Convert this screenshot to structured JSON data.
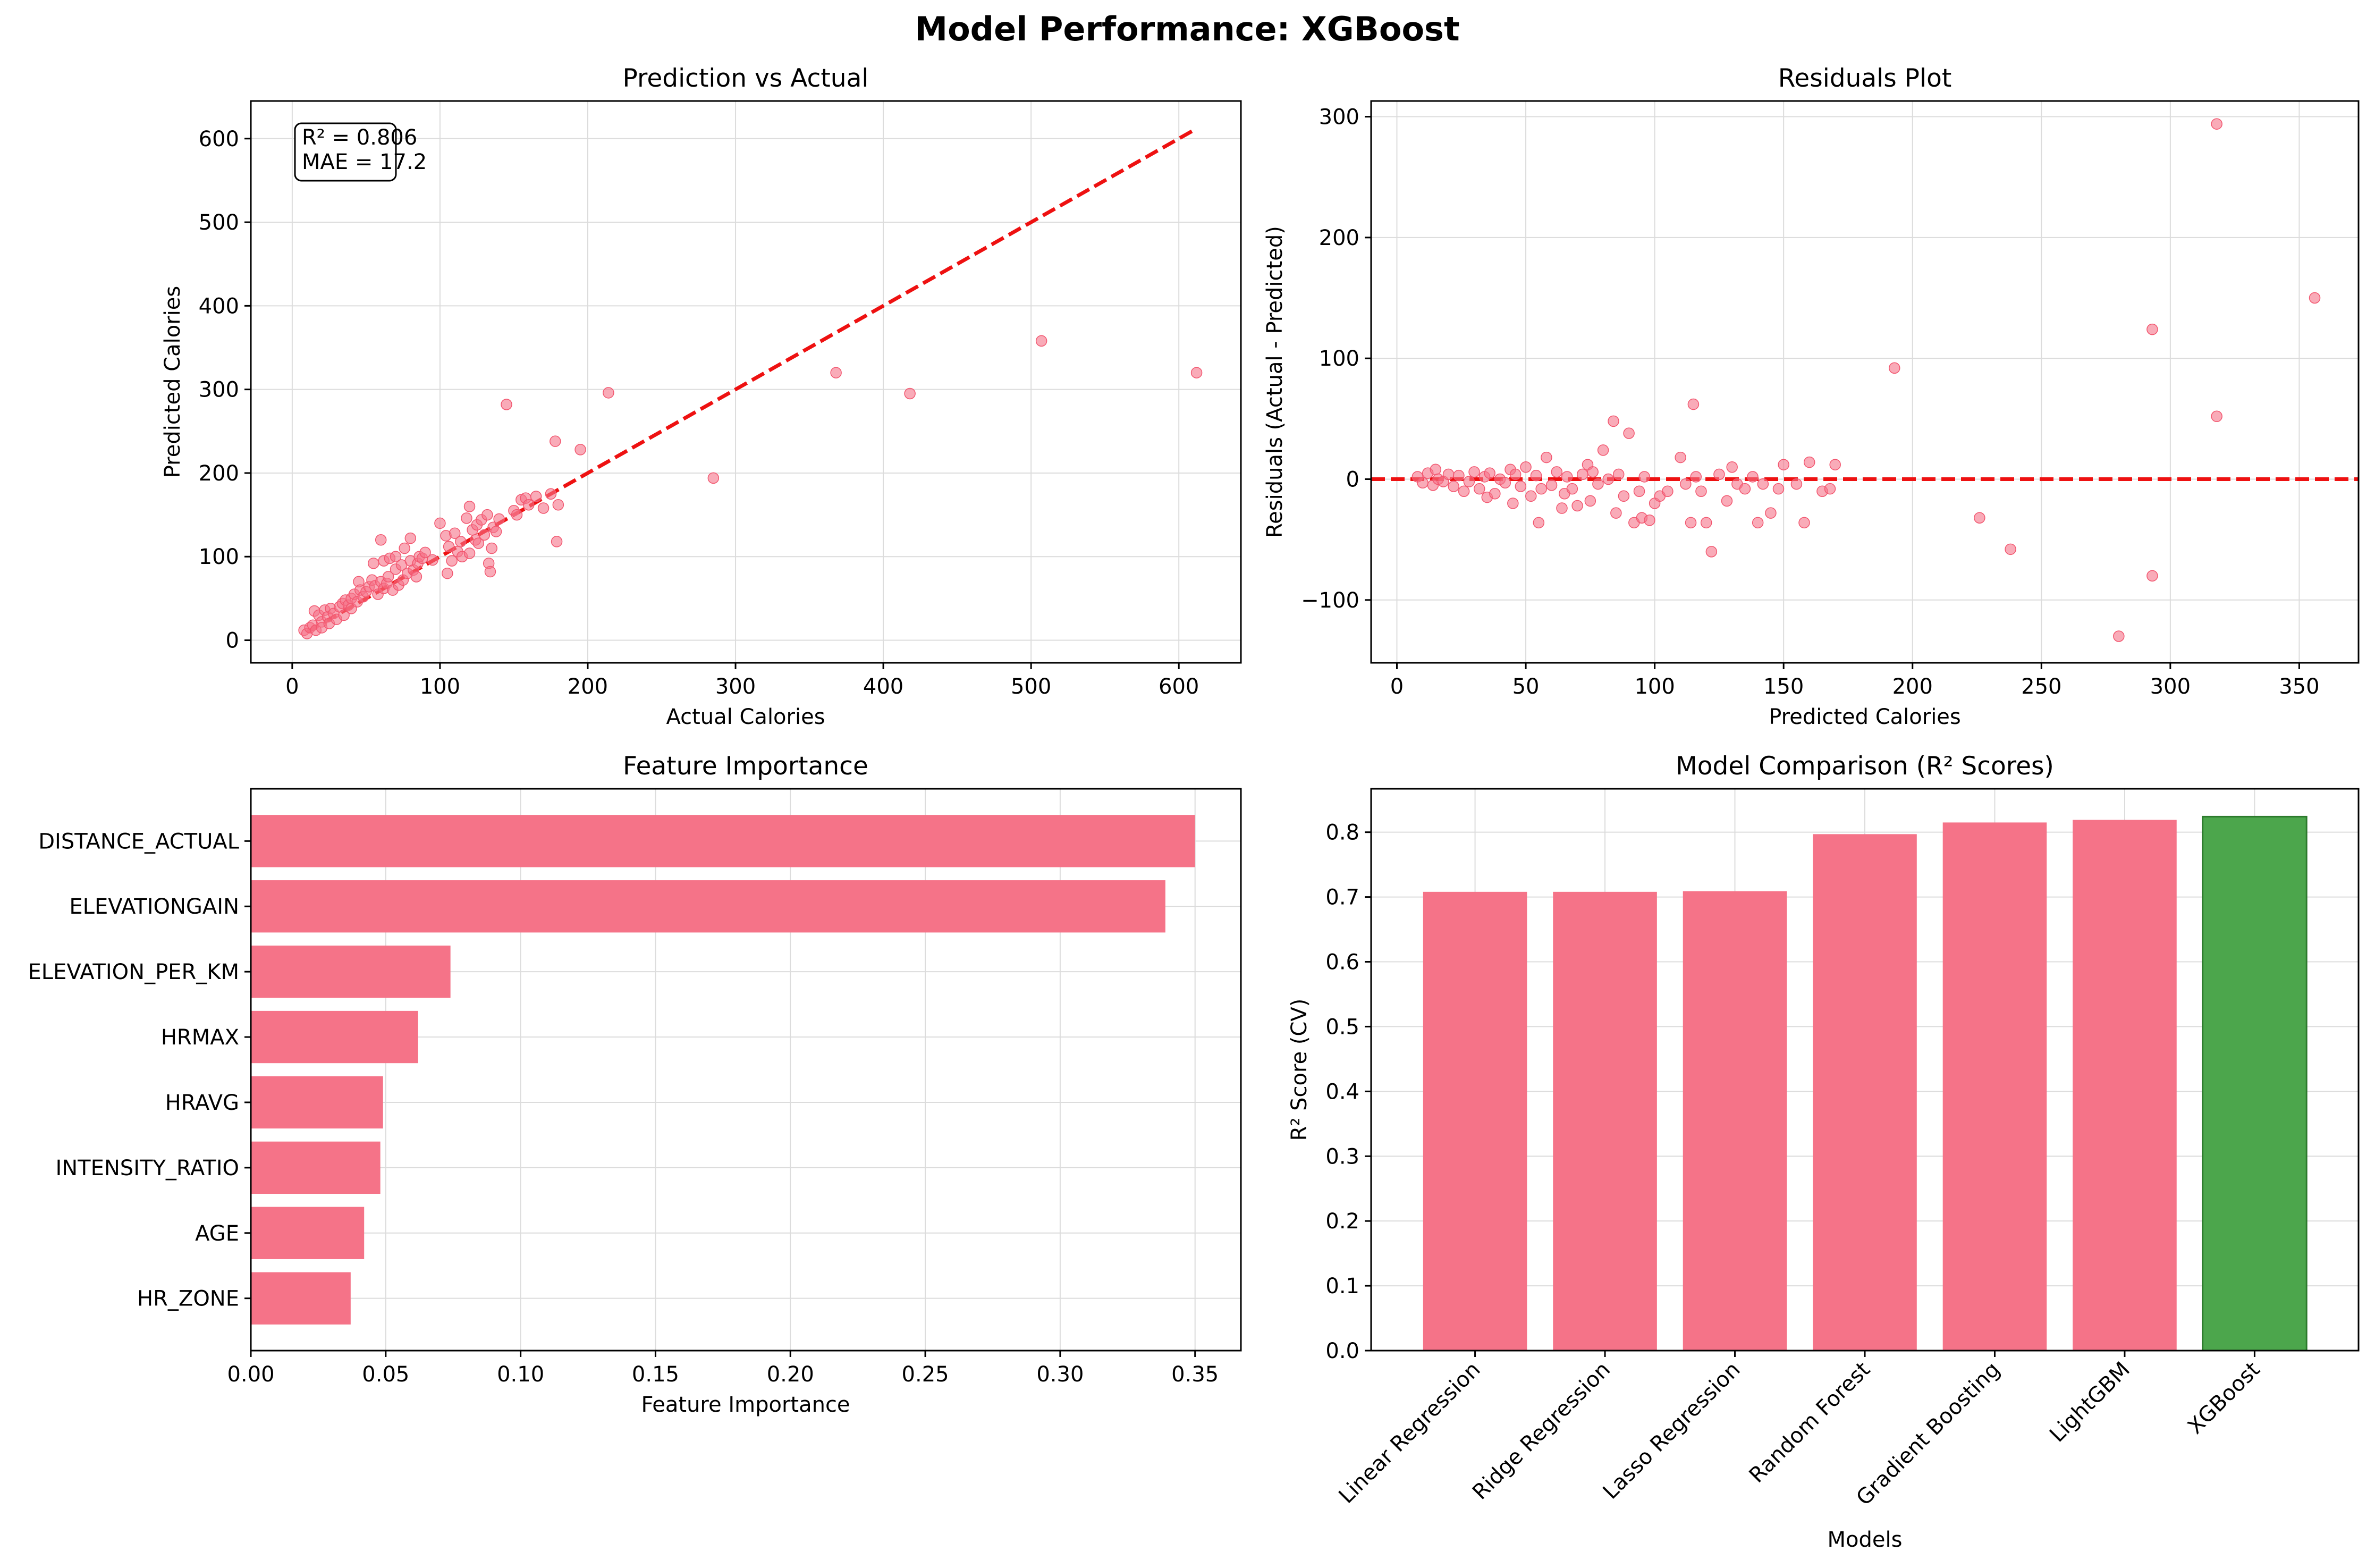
{
  "figure": {
    "title": "Model Performance: XGBoost",
    "panel_titles": [
      "Prediction vs Actual",
      "Residuals Plot",
      "Feature Importance",
      "Model Comparison (R² Scores)"
    ],
    "x_labels": [
      "Actual Calories",
      "Predicted Calories",
      "Feature Importance",
      "Models"
    ],
    "y_labels": [
      "Predicted Calories",
      "Residuals (Actual - Predicted)",
      "",
      "R² Score (CV)"
    ],
    "metrics": [
      "R² = 0.806",
      "MAE = 17.2"
    ]
  },
  "colors": {
    "points": "#f57388",
    "bars": "#f57388",
    "highlight": "#4ca64c",
    "reference_line": "#ee1111"
  },
  "chart_data": [
    {
      "type": "scatter",
      "title": "Prediction vs Actual",
      "xlabel": "Actual Calories",
      "ylabel": "Predicted Calories",
      "xlim": [
        -28,
        642
      ],
      "ylim": [
        -27,
        645
      ],
      "xticks": [
        0,
        100,
        200,
        300,
        400,
        500,
        600
      ],
      "yticks": [
        0,
        100,
        200,
        300,
        400,
        500,
        600
      ],
      "grid": true,
      "reference_line": {
        "x": [
          10,
          612
        ],
        "y": [
          10,
          612
        ],
        "style": "dashed"
      },
      "annotation": [
        "R² = 0.806",
        "MAE = 17.2"
      ],
      "x": [
        8,
        10,
        12,
        14,
        15,
        16,
        18,
        20,
        20,
        22,
        24,
        25,
        26,
        28,
        30,
        32,
        34,
        35,
        36,
        38,
        40,
        40,
        42,
        44,
        45,
        46,
        48,
        50,
        52,
        54,
        55,
        56,
        58,
        60,
        60,
        62,
        62,
        64,
        65,
        66,
        68,
        70,
        70,
        72,
        74,
        75,
        76,
        78,
        80,
        80,
        82,
        84,
        85,
        86,
        88,
        90,
        95,
        100,
        104,
        105,
        106,
        108,
        110,
        112,
        114,
        115,
        118,
        120,
        120,
        122,
        124,
        125,
        126,
        128,
        130,
        132,
        133,
        134,
        135,
        136,
        138,
        140,
        145,
        150,
        152,
        155,
        158,
        160,
        165,
        170,
        175,
        178,
        179,
        180,
        195,
        214,
        285,
        368,
        418,
        507,
        612
      ],
      "y": [
        12,
        8,
        15,
        18,
        35,
        12,
        30,
        22,
        15,
        36,
        28,
        20,
        38,
        32,
        25,
        40,
        44,
        30,
        48,
        42,
        50,
        38,
        55,
        46,
        70,
        60,
        52,
        58,
        64,
        72,
        92,
        65,
        55,
        120,
        70,
        95,
        62,
        68,
        76,
        98,
        60,
        85,
        100,
        66,
        90,
        72,
        110,
        80,
        95,
        122,
        84,
        76,
        92,
        100,
        98,
        105,
        96,
        140,
        125,
        80,
        112,
        95,
        128,
        106,
        118,
        100,
        146,
        104,
        160,
        132,
        120,
        138,
        116,
        144,
        126,
        150,
        92,
        82,
        110,
        135,
        130,
        145,
        282,
        155,
        150,
        168,
        170,
        162,
        172,
        158,
        175,
        238,
        118,
        162,
        228,
        296,
        194,
        320,
        295,
        358,
        320
      ]
    },
    {
      "type": "scatter",
      "title": "Residuals Plot",
      "xlabel": "Predicted Calories",
      "ylabel": "Residuals (Actual - Predicted)",
      "xlim": [
        -10,
        373
      ],
      "ylim": [
        -152,
        313
      ],
      "xticks": [
        0,
        50,
        100,
        150,
        200,
        250,
        300,
        350
      ],
      "yticks": [
        -100,
        0,
        100,
        200,
        300
      ],
      "grid": true,
      "reference_line": {
        "y": 0,
        "style": "dashed"
      },
      "x": [
        8,
        10,
        12,
        14,
        15,
        16,
        18,
        20,
        22,
        24,
        26,
        28,
        30,
        32,
        34,
        35,
        36,
        38,
        40,
        42,
        44,
        45,
        46,
        48,
        50,
        52,
        54,
        55,
        56,
        58,
        60,
        62,
        64,
        65,
        66,
        68,
        70,
        72,
        74,
        75,
        76,
        78,
        80,
        82,
        84,
        85,
        86,
        88,
        90,
        92,
        94,
        95,
        96,
        98,
        100,
        102,
        105,
        110,
        112,
        114,
        115,
        116,
        118,
        120,
        122,
        125,
        128,
        130,
        132,
        135,
        138,
        140,
        142,
        145,
        148,
        150,
        155,
        158,
        160,
        165,
        168,
        170,
        193,
        226,
        238,
        280,
        293,
        293,
        318,
        318,
        356
      ],
      "y": [
        2,
        -3,
        5,
        -5,
        8,
        0,
        -2,
        4,
        -6,
        3,
        -10,
        -2,
        6,
        -8,
        2,
        -15,
        5,
        -12,
        0,
        -3,
        8,
        -20,
        4,
        -6,
        10,
        -14,
        3,
        -36,
        -8,
        18,
        -5,
        6,
        -24,
        -12,
        2,
        -8,
        -22,
        4,
        12,
        -18,
        6,
        -4,
        24,
        0,
        48,
        -28,
        4,
        -14,
        38,
        -36,
        -10,
        -32,
        2,
        -34,
        -20,
        -14,
        -10,
        18,
        -4,
        -36,
        62,
        2,
        -10,
        -36,
        -60,
        4,
        -18,
        10,
        -4,
        -8,
        2,
        -36,
        -4,
        -28,
        -8,
        12,
        -4,
        -36,
        14,
        -10,
        -8,
        12,
        92,
        -32,
        -58,
        -130,
        124,
        -80,
        294,
        52,
        150
      ]
    },
    {
      "type": "bar",
      "orientation": "horizontal",
      "title": "Feature Importance",
      "xlabel": "Feature Importance",
      "ylabel": "",
      "xlim": [
        0,
        0.367
      ],
      "xticks": [
        0,
        0.05,
        0.1,
        0.15,
        0.2,
        0.25,
        0.3,
        0.35
      ],
      "grid": true,
      "categories": [
        "DISTANCE_ACTUAL",
        "ELEVATIONGAIN",
        "ELEVATION_PER_KM",
        "HRMAX",
        "HRAVG",
        "INTENSITY_RATIO",
        "AGE",
        "HR_ZONE"
      ],
      "values": [
        0.35,
        0.339,
        0.074,
        0.062,
        0.049,
        0.048,
        0.042,
        0.037
      ]
    },
    {
      "type": "bar",
      "title": "Model Comparison (R² Scores)",
      "xlabel": "Models",
      "ylabel": "R² Score (CV)",
      "ylim": [
        0,
        0.867
      ],
      "yticks": [
        0.0,
        0.1,
        0.2,
        0.3,
        0.4,
        0.5,
        0.6,
        0.7,
        0.8
      ],
      "grid": true,
      "categories": [
        "Linear Regression",
        "Ridge Regression",
        "Lasso Regression",
        "Random Forest",
        "Gradient Boosting",
        "LightGBM",
        "XGBoost"
      ],
      "values": [
        0.708,
        0.708,
        0.709,
        0.797,
        0.815,
        0.819,
        0.824
      ],
      "highlight": "XGBoost"
    }
  ]
}
